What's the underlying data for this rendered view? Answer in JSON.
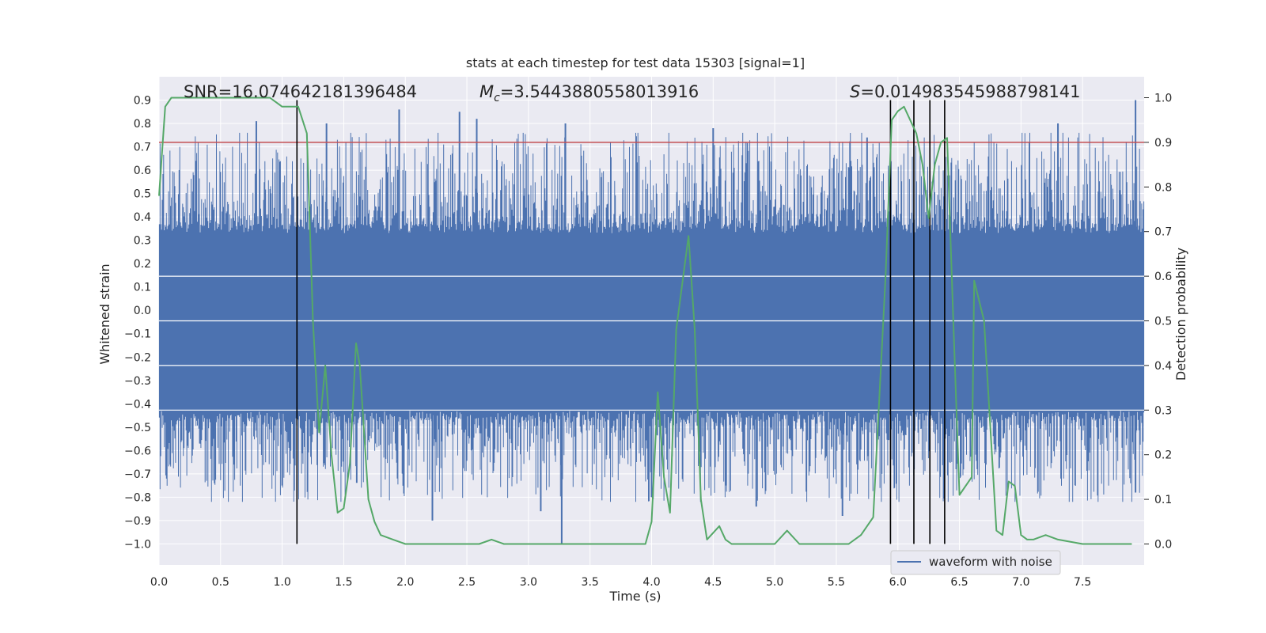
{
  "chart_data": {
    "type": "line",
    "title": "stats at each timestep for test data 15303 [signal=1]",
    "xlabel": "Time (s)",
    "ylabel": "Whitened strain",
    "y2label": "Detection probability",
    "xlim": [
      0.0,
      8.0
    ],
    "ylim": [
      -1.09,
      1.0
    ],
    "y2lim": [
      -0.047,
      1.047
    ],
    "xticks": [
      "0.0",
      "0.5",
      "1.0",
      "1.5",
      "2.0",
      "2.5",
      "3.0",
      "3.5",
      "4.0",
      "4.5",
      "5.0",
      "5.5",
      "6.0",
      "6.5",
      "7.0",
      "7.5"
    ],
    "yticks": [
      "0.9",
      "0.8",
      "0.7",
      "0.6",
      "0.5",
      "0.4",
      "0.3",
      "0.2",
      "0.1",
      "0.0",
      "−0.1",
      "−0.2",
      "−0.3",
      "−0.4",
      "−0.5",
      "−0.6",
      "−0.7",
      "−0.8",
      "−0.9",
      "−1.0"
    ],
    "y2ticks": [
      "1.0",
      "0.9",
      "0.8",
      "0.7",
      "0.6",
      "0.5",
      "0.4",
      "0.3",
      "0.2",
      "0.1",
      "0.0"
    ],
    "grid": true,
    "legend": {
      "position": "bottom-right",
      "entries": [
        "waveform with noise"
      ]
    },
    "annotations": {
      "snr": "SNR=16.074642181396484",
      "mc_symbol": "M",
      "mc_subscript": "c",
      "mc_value": "=3.5443880558013916",
      "s_symbol": "S",
      "s_value": "=0.014983545988798141"
    },
    "series": [
      {
        "name": "waveform with noise",
        "axis": "left",
        "color": "#4c72b0",
        "style": "dense noise oscillation, core band about -0.43 to 0.33 with peaks up to about 0.9 and troughs down to about -1.0",
        "core_range": [
          -0.43,
          0.33
        ],
        "max_peaks": [
          {
            "x": 0.79,
            "y": 0.81
          },
          {
            "x": 1.36,
            "y": 0.8
          },
          {
            "x": 1.95,
            "y": 0.86
          },
          {
            "x": 2.44,
            "y": 0.85
          },
          {
            "x": 2.58,
            "y": 0.82
          },
          {
            "x": 3.3,
            "y": 0.8
          },
          {
            "x": 4.5,
            "y": 0.78
          },
          {
            "x": 5.75,
            "y": 0.74
          },
          {
            "x": 7.3,
            "y": 0.8
          },
          {
            "x": 7.93,
            "y": 0.9
          }
        ],
        "min_troughs": [
          {
            "x": 1.0,
            "y": -0.75
          },
          {
            "x": 2.22,
            "y": -0.9
          },
          {
            "x": 3.1,
            "y": -0.86
          },
          {
            "x": 3.27,
            "y": -1.0
          },
          {
            "x": 4.0,
            "y": -0.8
          },
          {
            "x": 4.85,
            "y": -0.84
          },
          {
            "x": 5.55,
            "y": -0.88
          },
          {
            "x": 7.93,
            "y": -0.78
          }
        ]
      },
      {
        "name": "",
        "axis": "right",
        "color": "#55a868",
        "x": [
          0.0,
          0.05,
          0.1,
          0.15,
          0.2,
          0.3,
          0.4,
          0.5,
          0.6,
          0.7,
          0.8,
          0.9,
          1.0,
          1.1,
          1.13,
          1.2,
          1.25,
          1.3,
          1.35,
          1.4,
          1.45,
          1.5,
          1.55,
          1.6,
          1.63,
          1.7,
          1.75,
          1.8,
          1.9,
          2.0,
          2.2,
          2.4,
          2.6,
          2.7,
          2.8,
          3.0,
          3.2,
          3.4,
          3.6,
          3.8,
          3.95,
          4.0,
          4.05,
          4.1,
          4.15,
          4.2,
          4.3,
          4.35,
          4.4,
          4.45,
          4.55,
          4.6,
          4.65,
          4.7,
          4.8,
          5.0,
          5.1,
          5.2,
          5.3,
          5.4,
          5.6,
          5.7,
          5.8,
          5.9,
          5.95,
          6.0,
          6.05,
          6.1,
          6.15,
          6.2,
          6.25,
          6.3,
          6.35,
          6.4,
          6.45,
          6.5,
          6.6,
          6.62,
          6.7,
          6.8,
          6.85,
          6.9,
          6.95,
          7.0,
          7.05,
          7.1,
          7.2,
          7.3,
          7.5,
          7.9
        ],
        "y": [
          0.78,
          0.98,
          1.0,
          1.0,
          1.0,
          1.0,
          1.0,
          1.0,
          1.0,
          1.0,
          1.0,
          1.0,
          0.98,
          0.98,
          0.98,
          0.92,
          0.5,
          0.25,
          0.4,
          0.2,
          0.07,
          0.08,
          0.18,
          0.45,
          0.4,
          0.1,
          0.05,
          0.02,
          0.01,
          0.0,
          0.0,
          0.0,
          0.0,
          0.01,
          0.0,
          0.0,
          0.0,
          0.0,
          0.0,
          0.0,
          0.0,
          0.05,
          0.34,
          0.15,
          0.07,
          0.48,
          0.69,
          0.48,
          0.1,
          0.01,
          0.04,
          0.01,
          0.0,
          0.0,
          0.0,
          0.0,
          0.03,
          0.0,
          0.0,
          0.0,
          0.0,
          0.02,
          0.06,
          0.6,
          0.95,
          0.97,
          0.98,
          0.95,
          0.92,
          0.85,
          0.73,
          0.85,
          0.9,
          0.91,
          0.5,
          0.11,
          0.15,
          0.59,
          0.5,
          0.03,
          0.02,
          0.14,
          0.13,
          0.02,
          0.01,
          0.01,
          0.02,
          0.01,
          0.0,
          0.0
        ]
      }
    ],
    "hlines": [
      {
        "axis": "right",
        "y": 0.9,
        "color": "#c44e52"
      }
    ],
    "vlines": [
      1.12,
      5.94,
      6.13,
      6.26,
      6.38
    ]
  }
}
